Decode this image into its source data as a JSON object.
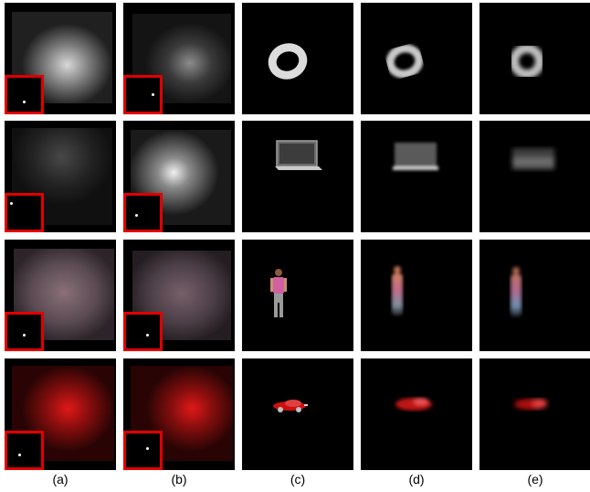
{
  "columns": [
    {
      "label": "(a)"
    },
    {
      "label": "(b)"
    },
    {
      "label": "(c)"
    },
    {
      "label": "(d)"
    },
    {
      "label": "(e)"
    }
  ],
  "rows": [
    {
      "object": "torus",
      "tint": "#ffffff"
    },
    {
      "object": "laptop",
      "tint": "#ffffff"
    },
    {
      "object": "person",
      "tint": "#c8a0b0"
    },
    {
      "object": "car",
      "tint": "#e02020"
    }
  ],
  "colors": {
    "inset_border": "#e10000",
    "panel_background": "#000000"
  }
}
